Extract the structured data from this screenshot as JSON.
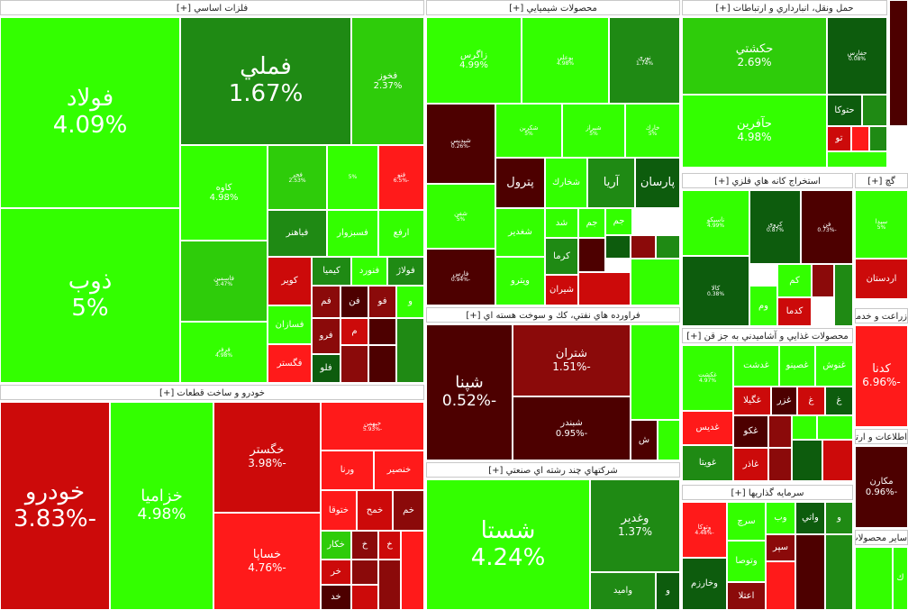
{
  "colors": {
    "G1": "#33ff00",
    "G2": "#2ecc0a",
    "G3": "#1f8a14",
    "G4": "#0d5c0d",
    "R1": "#ff1a1a",
    "R2": "#cc0a0a",
    "R3": "#8b0a0a",
    "R4": "#4d0000"
  },
  "sectors": [
    {
      "id": "s0",
      "title": "فلزات اساسي [+]",
      "cells": [
        {
          "n": "فولاد",
          "p": "4.09%",
          "c": "G1",
          "f": "xl"
        },
        {
          "n": "ذوب",
          "p": "5%",
          "c": "G1",
          "f": "xl"
        },
        {
          "n": "فملي",
          "p": "1.67%",
          "c": "G3",
          "f": "xl"
        },
        {
          "n": "فخوز",
          "p": "2.37%",
          "c": "G2",
          "f": "sm"
        },
        {
          "n": "كاوه",
          "p": "4.98%",
          "c": "G1",
          "f": "sm"
        },
        {
          "n": "فاسمين",
          "p": "3.47%",
          "c": "G2",
          "f": "xs"
        },
        {
          "n": "فرفر",
          "p": "4.98%",
          "c": "G1",
          "f": "xs"
        },
        {
          "n": "فجر",
          "p": "2.53%",
          "c": "G2",
          "f": "xs"
        },
        {
          "n": "",
          "p": "5%",
          "c": "G1",
          "f": "xs"
        },
        {
          "n": "فنو",
          "p": "-6.5%",
          "c": "R1",
          "f": "xs"
        },
        {
          "n": "فباهنر",
          "p": "",
          "c": "G3",
          "f": "sm"
        },
        {
          "n": "فسبزوار",
          "p": "",
          "c": "G1",
          "f": "sm"
        },
        {
          "n": "ارفع",
          "p": "",
          "c": "G1",
          "f": "sm"
        },
        {
          "n": "كوير",
          "p": "",
          "c": "R2",
          "f": "sm"
        },
        {
          "n": "كيميا",
          "p": "",
          "c": "G3",
          "f": "sm"
        },
        {
          "n": "فنورد",
          "p": "",
          "c": "G1",
          "f": "sm"
        },
        {
          "n": "فولاژ",
          "p": "",
          "c": "G3",
          "f": "sm"
        },
        {
          "n": "فسازان",
          "p": "",
          "c": "G1",
          "f": "sm"
        },
        {
          "n": "فگستر",
          "p": "",
          "c": "R1",
          "f": "sm"
        },
        {
          "n": "فم",
          "p": "",
          "c": "R3",
          "f": "sm"
        },
        {
          "n": "فن",
          "p": "",
          "c": "R4",
          "f": "sm"
        },
        {
          "n": "فو",
          "p": "",
          "c": "R3",
          "f": "sm"
        },
        {
          "n": "و",
          "p": "",
          "c": "G1",
          "f": "sm"
        },
        {
          "n": "فرو",
          "p": "",
          "c": "R3",
          "f": "sm"
        },
        {
          "n": "م",
          "p": "",
          "c": "R2",
          "f": "sm"
        },
        {
          "n": "",
          "p": "",
          "c": "R4",
          "f": "sm"
        },
        {
          "n": "فلو",
          "p": "",
          "c": "G4",
          "f": "sm"
        },
        {
          "n": "",
          "p": "",
          "c": "R3",
          "f": "sm"
        },
        {
          "n": "",
          "p": "",
          "c": "R4",
          "f": "sm"
        },
        {
          "n": "",
          "p": "",
          "c": "G3",
          "f": "sm"
        }
      ]
    },
    {
      "id": "s1",
      "title": "خودرو و ساخت قطعات [+]",
      "cells": [
        {
          "n": "خودرو",
          "p": "-3.83%",
          "c": "R2",
          "f": "xl"
        },
        {
          "n": "خزاميا",
          "p": "4.98%",
          "c": "G1",
          "f": "lg"
        },
        {
          "n": "خگستر",
          "p": "-3.98%",
          "c": "R2",
          "f": "md"
        },
        {
          "n": "خساپا",
          "p": "-4.76%",
          "c": "R1",
          "f": "md"
        },
        {
          "n": "خبهمن",
          "p": "-5.93%",
          "c": "R1",
          "f": "xs"
        },
        {
          "n": "ورنا",
          "p": "",
          "c": "R1",
          "f": "sm"
        },
        {
          "n": "خنصير",
          "p": "",
          "c": "R1",
          "f": "sm"
        },
        {
          "n": "ختوقا",
          "p": "",
          "c": "R1",
          "f": "sm"
        },
        {
          "n": "خمح",
          "p": "",
          "c": "R2",
          "f": "sm"
        },
        {
          "n": "خم",
          "p": "",
          "c": "R3",
          "f": "sm"
        },
        {
          "n": "خكار",
          "p": "",
          "c": "G2",
          "f": "sm"
        },
        {
          "n": "خ",
          "p": "",
          "c": "R3",
          "f": "sm"
        },
        {
          "n": "خ",
          "p": "",
          "c": "R2",
          "f": "sm"
        },
        {
          "n": "خر",
          "p": "",
          "c": "R2",
          "f": "sm"
        },
        {
          "n": "",
          "p": "",
          "c": "R3",
          "f": "sm"
        },
        {
          "n": "خد",
          "p": "",
          "c": "R4",
          "f": "sm"
        },
        {
          "n": "",
          "p": "",
          "c": "R2",
          "f": "sm"
        },
        {
          "n": "",
          "p": "",
          "c": "R3",
          "f": "sm"
        },
        {
          "n": "",
          "p": "",
          "c": "R1",
          "f": "sm"
        }
      ]
    },
    {
      "id": "s2",
      "title": "محصولات شيميايي [+]",
      "cells": [
        {
          "n": "زاگرس",
          "p": "4.99%",
          "c": "G1",
          "f": "sm"
        },
        {
          "n": "بوعلي",
          "p": "4.98%",
          "c": "G1",
          "f": "xs"
        },
        {
          "n": "نوري",
          "p": "1.74%",
          "c": "G3",
          "f": "xs"
        },
        {
          "n": "شپديس",
          "p": "-0.26%",
          "c": "R4",
          "f": "xs"
        },
        {
          "n": "شفن",
          "p": "5%",
          "c": "G1",
          "f": "xs"
        },
        {
          "n": "فارس",
          "p": "-0.94%",
          "c": "R4",
          "f": "xs"
        },
        {
          "n": "شكربن",
          "p": "5%",
          "c": "G1",
          "f": "xs"
        },
        {
          "n": "شيراز",
          "p": "5%",
          "c": "G1",
          "f": "xs"
        },
        {
          "n": "خارك",
          "p": "5%",
          "c": "G1",
          "f": "xs"
        },
        {
          "n": "پترول",
          "p": "",
          "c": "R4",
          "f": "md"
        },
        {
          "n": "شخارك",
          "p": "",
          "c": "G1",
          "f": "sm"
        },
        {
          "n": "آريا",
          "p": "",
          "c": "G3",
          "f": "md"
        },
        {
          "n": "پارسان",
          "p": "",
          "c": "G4",
          "f": "md"
        },
        {
          "n": "شغدير",
          "p": "",
          "c": "G1",
          "f": "sm"
        },
        {
          "n": "ويترو",
          "p": "",
          "c": "G1",
          "f": "sm"
        },
        {
          "n": "شد",
          "p": "",
          "c": "G1",
          "f": "sm"
        },
        {
          "n": "جم",
          "p": "",
          "c": "G1",
          "f": "sm"
        },
        {
          "n": "جم",
          "p": "",
          "c": "G1",
          "f": "sm"
        },
        {
          "n": "كرما",
          "p": "",
          "c": "G3",
          "f": "sm"
        },
        {
          "n": "شيران",
          "p": "",
          "c": "R2",
          "f": "sm"
        },
        {
          "n": "",
          "p": "",
          "c": "R4",
          "f": "sm"
        },
        {
          "n": "",
          "p": "",
          "c": "G4",
          "f": "sm"
        },
        {
          "n": "",
          "p": "",
          "c": "R3",
          "f": "sm"
        },
        {
          "n": "",
          "p": "",
          "c": "G3",
          "f": "sm"
        },
        {
          "n": "",
          "p": "",
          "c": "R2",
          "f": "sm"
        },
        {
          "n": "",
          "p": "",
          "c": "G1",
          "f": "sm"
        }
      ]
    },
    {
      "id": "s3",
      "title": "حمل ونقل، انبارداري و ارتباطات [+]",
      "cells": [
        {
          "n": "حكشتي",
          "p": "2.69%",
          "c": "G2",
          "f": "md"
        },
        {
          "n": "حفارس",
          "p": "0.08%",
          "c": "G4",
          "f": "xs"
        },
        {
          "n": "حآفرين",
          "p": "4.98%",
          "c": "G1",
          "f": "md"
        },
        {
          "n": "حتوكا",
          "p": "",
          "c": "G4",
          "f": "sm"
        },
        {
          "n": "تو",
          "p": "",
          "c": "R2",
          "f": "sm"
        },
        {
          "n": "",
          "p": "",
          "c": "R1",
          "f": "sm"
        },
        {
          "n": "",
          "p": "",
          "c": "G3",
          "f": "sm"
        },
        {
          "n": "",
          "p": "",
          "c": "G3",
          "f": "sm"
        },
        {
          "n": "",
          "p": "",
          "c": "G1",
          "f": "sm"
        }
      ]
    },
    {
      "id": "s4",
      "title": "استخراج كانه هاي فلزي [+]",
      "cells": [
        {
          "n": "ناسيكو",
          "p": "4.99%",
          "c": "G1",
          "f": "xs"
        },
        {
          "n": "كروي",
          "p": "0.87%",
          "c": "G4",
          "f": "xs"
        },
        {
          "n": "فن",
          "p": "-0.73%",
          "c": "R4",
          "f": "xs"
        },
        {
          "n": "كالا",
          "p": "0.38%",
          "c": "G4",
          "f": "xs"
        },
        {
          "n": "كم",
          "p": "",
          "c": "G1",
          "f": "sm"
        },
        {
          "n": "وم",
          "p": "",
          "c": "G1",
          "f": "sm"
        },
        {
          "n": "كدما",
          "p": "",
          "c": "R2",
          "f": "sm"
        },
        {
          "n": "",
          "p": "",
          "c": "R3",
          "f": "sm"
        },
        {
          "n": "",
          "p": "",
          "c": "G3",
          "f": "sm"
        }
      ]
    },
    {
      "id": "s5",
      "title": "فراورده هاي نفتي، كك و سوخت هسته اي [+]",
      "cells": [
        {
          "n": "شپنا",
          "p": "-0.52%",
          "c": "R4",
          "f": "lg"
        },
        {
          "n": "شتران",
          "p": "-1.51%",
          "c": "R3",
          "f": "md"
        },
        {
          "n": "شبندر",
          "p": "-0.95%",
          "c": "R4",
          "f": "sm"
        },
        {
          "n": "",
          "p": "",
          "c": "G1",
          "f": "sm"
        },
        {
          "n": "ش",
          "p": "",
          "c": "R4",
          "f": "sm"
        },
        {
          "n": "",
          "p": "",
          "c": "G1",
          "f": "sm"
        }
      ]
    },
    {
      "id": "s6",
      "title": "شركتهاي چند رشته اي صنعتي [+]",
      "cells": [
        {
          "n": "شستا",
          "p": "4.24%",
          "c": "G1",
          "f": "xl"
        },
        {
          "n": "وغدير",
          "p": "1.37%",
          "c": "G3",
          "f": "md"
        },
        {
          "n": "وامید",
          "p": "",
          "c": "G3",
          "f": "sm"
        },
        {
          "n": "و",
          "p": "",
          "c": "G4",
          "f": "sm"
        }
      ]
    },
    {
      "id": "s7",
      "title": "محصولات غذايي و آشاميدني به جز قن [+]",
      "cells": [
        {
          "n": "غكشت",
          "p": "4.97%",
          "c": "G1",
          "f": "xs"
        },
        {
          "n": "غدشت",
          "p": "",
          "c": "G1",
          "f": "sm"
        },
        {
          "n": "غصينو",
          "p": "",
          "c": "G1",
          "f": "sm"
        },
        {
          "n": "غنوش",
          "p": "",
          "c": "G1",
          "f": "sm"
        },
        {
          "n": "غگيلا",
          "p": "",
          "c": "R2",
          "f": "sm"
        },
        {
          "n": "غزر",
          "p": "",
          "c": "R4",
          "f": "sm"
        },
        {
          "n": "غ",
          "p": "",
          "c": "R2",
          "f": "sm"
        },
        {
          "n": "غ",
          "p": "",
          "c": "G4",
          "f": "sm"
        },
        {
          "n": "غديس",
          "p": "",
          "c": "R1",
          "f": "sm"
        },
        {
          "n": "غكو",
          "p": "",
          "c": "R4",
          "f": "sm"
        },
        {
          "n": "",
          "p": "",
          "c": "R3",
          "f": "sm"
        },
        {
          "n": "",
          "p": "",
          "c": "G1",
          "f": "sm"
        },
        {
          "n": "",
          "p": "",
          "c": "G1",
          "f": "sm"
        },
        {
          "n": "غويتا",
          "p": "",
          "c": "G3",
          "f": "sm"
        },
        {
          "n": "غاذر",
          "p": "",
          "c": "R2",
          "f": "sm"
        },
        {
          "n": "",
          "p": "",
          "c": "R3",
          "f": "sm"
        },
        {
          "n": "",
          "p": "",
          "c": "G4",
          "f": "sm"
        },
        {
          "n": "",
          "p": "",
          "c": "R2",
          "f": "sm"
        }
      ]
    },
    {
      "id": "s8",
      "title": "سرمايه گذاريها [+]",
      "cells": [
        {
          "n": "وتوكا",
          "p": "-4.48%",
          "c": "R1",
          "f": "xs"
        },
        {
          "n": "سرچ",
          "p": "",
          "c": "G1",
          "f": "sm"
        },
        {
          "n": "وب",
          "p": "",
          "c": "G1",
          "f": "sm"
        },
        {
          "n": "واتي",
          "p": "",
          "c": "G4",
          "f": "sm"
        },
        {
          "n": "و",
          "p": "",
          "c": "G3",
          "f": "sm"
        },
        {
          "n": "وتوصا",
          "p": "",
          "c": "G1",
          "f": "sm"
        },
        {
          "n": "سپر",
          "p": "",
          "c": "R3",
          "f": "sm"
        },
        {
          "n": "وخارزم",
          "p": "",
          "c": "G4",
          "f": "sm"
        },
        {
          "n": "اعتلا",
          "p": "",
          "c": "R3",
          "f": "sm"
        },
        {
          "n": "",
          "p": "",
          "c": "R1",
          "f": "sm"
        },
        {
          "n": "",
          "p": "",
          "c": "R4",
          "f": "sm"
        },
        {
          "n": "",
          "p": "",
          "c": "G3",
          "f": "sm"
        }
      ]
    },
    {
      "id": "s9",
      "title": "",
      "cells": [
        {
          "n": "",
          "p": "",
          "c": "R4",
          "f": "sm"
        }
      ]
    },
    {
      "id": "s10",
      "title": "گچ [+]",
      "cells": [
        {
          "n": "سيدا",
          "p": "5%",
          "c": "G1",
          "f": "xs"
        },
        {
          "n": "اردستان",
          "p": "",
          "c": "R2",
          "f": "sm"
        }
      ]
    },
    {
      "id": "s11",
      "title": "زراعت و خدمات وابسته [+]",
      "cells": [
        {
          "n": "كدنا",
          "p": "-6.96%",
          "c": "R1",
          "f": "md"
        }
      ]
    },
    {
      "id": "s12",
      "title": "اطلاعات و ارتباطات [+]",
      "cells": [
        {
          "n": "مكارن",
          "p": "-0.96%",
          "c": "R4",
          "f": "sm"
        }
      ]
    },
    {
      "id": "s13",
      "title": "ساير محصولات كاني غيرفلزي [+]",
      "cells": [
        {
          "n": "",
          "p": "",
          "c": "G1",
          "f": "sm"
        },
        {
          "n": "ك",
          "p": "",
          "c": "G1",
          "f": "sm"
        }
      ]
    }
  ]
}
